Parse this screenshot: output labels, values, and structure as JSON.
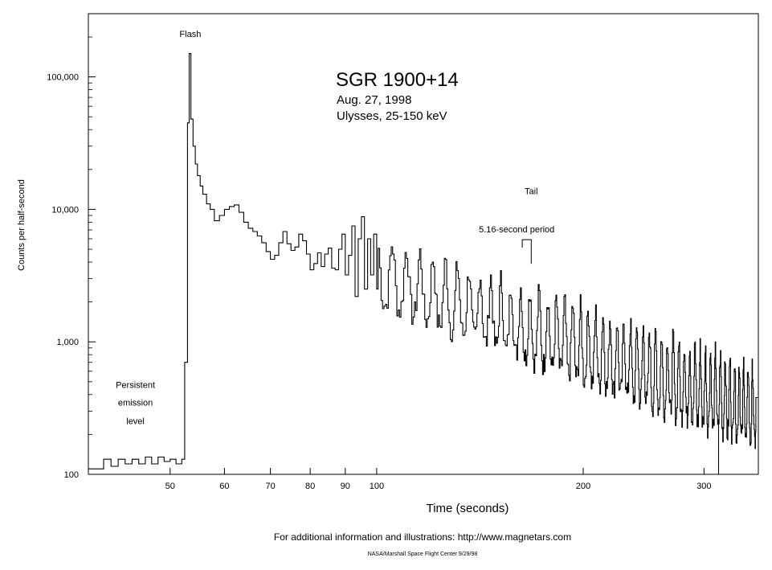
{
  "chart_data": {
    "type": "line",
    "title": "SGR 1900+14",
    "subtitle_lines": [
      "Aug. 27, 1998",
      "Ulysses, 25-150 keV"
    ],
    "xlabel": "Time (seconds)",
    "ylabel": "Counts per half-second",
    "x_scale": "log",
    "y_scale": "log",
    "xlim": [
      38,
      360
    ],
    "ylim": [
      100,
      300000
    ],
    "x_ticks": [
      50,
      60,
      70,
      80,
      90,
      100,
      200,
      300
    ],
    "x_tick_labels": [
      "50",
      "60",
      "70",
      "80",
      "90",
      "100",
      "200",
      "300"
    ],
    "y_ticks": [
      100,
      1000,
      10000,
      100000
    ],
    "y_tick_labels": [
      "100",
      "1,000",
      "10,000",
      "100,000"
    ],
    "grid": false,
    "style": "step",
    "series_color": "#000000",
    "annotations": [
      {
        "text": "Flash",
        "x": 53.5,
        "y": 200000
      },
      {
        "text": "Tail",
        "x": 168,
        "y": 13000
      },
      {
        "text": "5.16-second period",
        "x": 160,
        "y": 6700
      },
      {
        "text": "Persistent",
        "x": 44.5,
        "y": 450
      },
      {
        "text": "emission",
        "x": 44.5,
        "y": 330
      },
      {
        "text": "level",
        "x": 44.5,
        "y": 240
      }
    ],
    "period_bracket": {
      "x_start": 163,
      "x_end": 168,
      "y": 5900
    },
    "series": [
      {
        "values_description_free": true,
        "x": [
          38,
          40,
          41,
          42,
          43,
          44,
          45,
          46,
          47,
          48,
          49,
          50,
          51,
          52,
          52.5,
          53,
          53.3,
          53.6,
          54,
          54.4,
          54.8,
          55.3,
          55.8,
          56.5,
          57.2,
          58,
          59,
          60,
          61,
          62,
          63,
          64,
          65,
          66,
          67,
          68,
          69,
          70,
          71,
          72,
          73,
          74,
          75,
          76,
          77,
          78,
          79,
          80,
          81,
          82,
          83,
          84,
          85,
          86,
          87,
          88,
          89,
          90,
          91,
          92,
          93,
          94,
          95,
          96,
          97,
          98,
          99,
          100
        ],
        "y": [
          110,
          130,
          115,
          130,
          120,
          130,
          120,
          135,
          120,
          135,
          125,
          130,
          120,
          130,
          700,
          45000,
          150000,
          48000,
          30000,
          22000,
          18000,
          15000,
          13000,
          11000,
          10000,
          8200,
          9000,
          10000,
          10500,
          10800,
          9500,
          8000,
          7200,
          6800,
          6300,
          5600,
          4800,
          4200,
          4500,
          5600,
          6800,
          5500,
          4900,
          5200,
          6500,
          5800,
          4600,
          3500,
          3900,
          4700,
          3700,
          4600,
          5100,
          3600,
          3500,
          5000,
          6500,
          3200,
          4500,
          7500,
          2200,
          6000,
          8800,
          2500,
          6000,
          3200,
          6500,
          2500
        ]
      }
    ],
    "tail_model": {
      "t_start": 100,
      "t_end": 357,
      "period_s": 5.16,
      "envelope_start": 6000,
      "envelope_end": 650,
      "trough_start": 2000,
      "trough_end": 170
    },
    "final_dip": {
      "x": 315,
      "y": 100
    }
  },
  "footer": {
    "line1": "For additional information and illustrations: http://www.magnetars.com",
    "line2": "NASA/Marshall Space Flight Center 9/29/98"
  }
}
